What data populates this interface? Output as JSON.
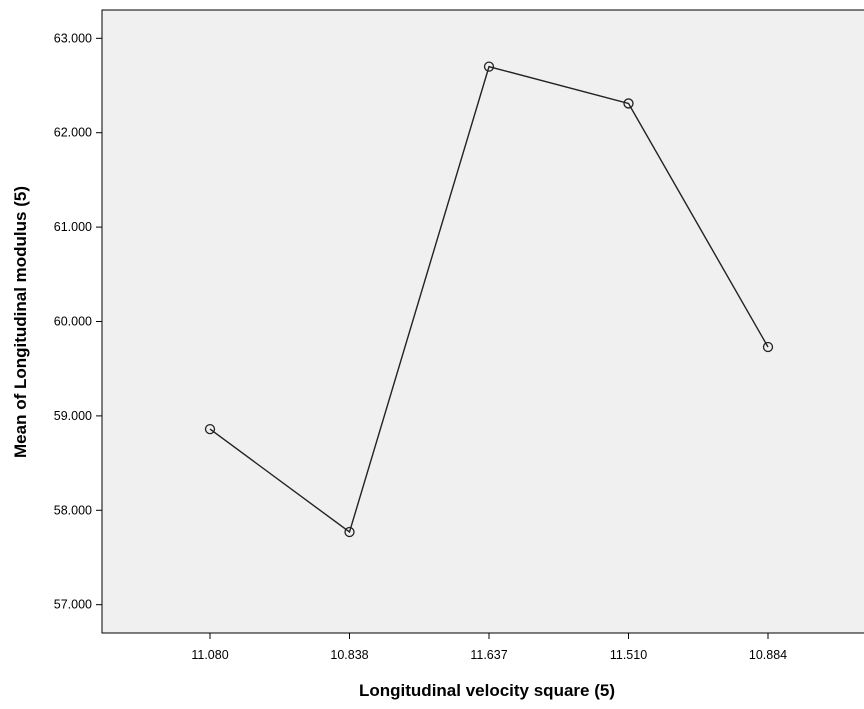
{
  "chart_data": {
    "type": "line",
    "categories": [
      "11.080",
      "10.838",
      "11.637",
      "11.510",
      "10.884"
    ],
    "values": [
      58.86,
      57.77,
      62.7,
      62.31,
      59.73
    ],
    "xlabel": "Longitudinal velocity square (5)",
    "ylabel": "Mean of Longitudinal modulus (5)",
    "ylim": [
      56.7,
      63.3
    ],
    "yticks": [
      57.0,
      58.0,
      59.0,
      60.0,
      61.0,
      62.0,
      63.0
    ],
    "ytick_labels": [
      "57.000",
      "58.000",
      "59.000",
      "60.000",
      "61.000",
      "62.000",
      "63.000"
    ],
    "grid": false,
    "marker": "open-circle",
    "colors": {
      "plot_background": "#f0f0f0",
      "line": "#222222",
      "axis": "#000000"
    }
  }
}
